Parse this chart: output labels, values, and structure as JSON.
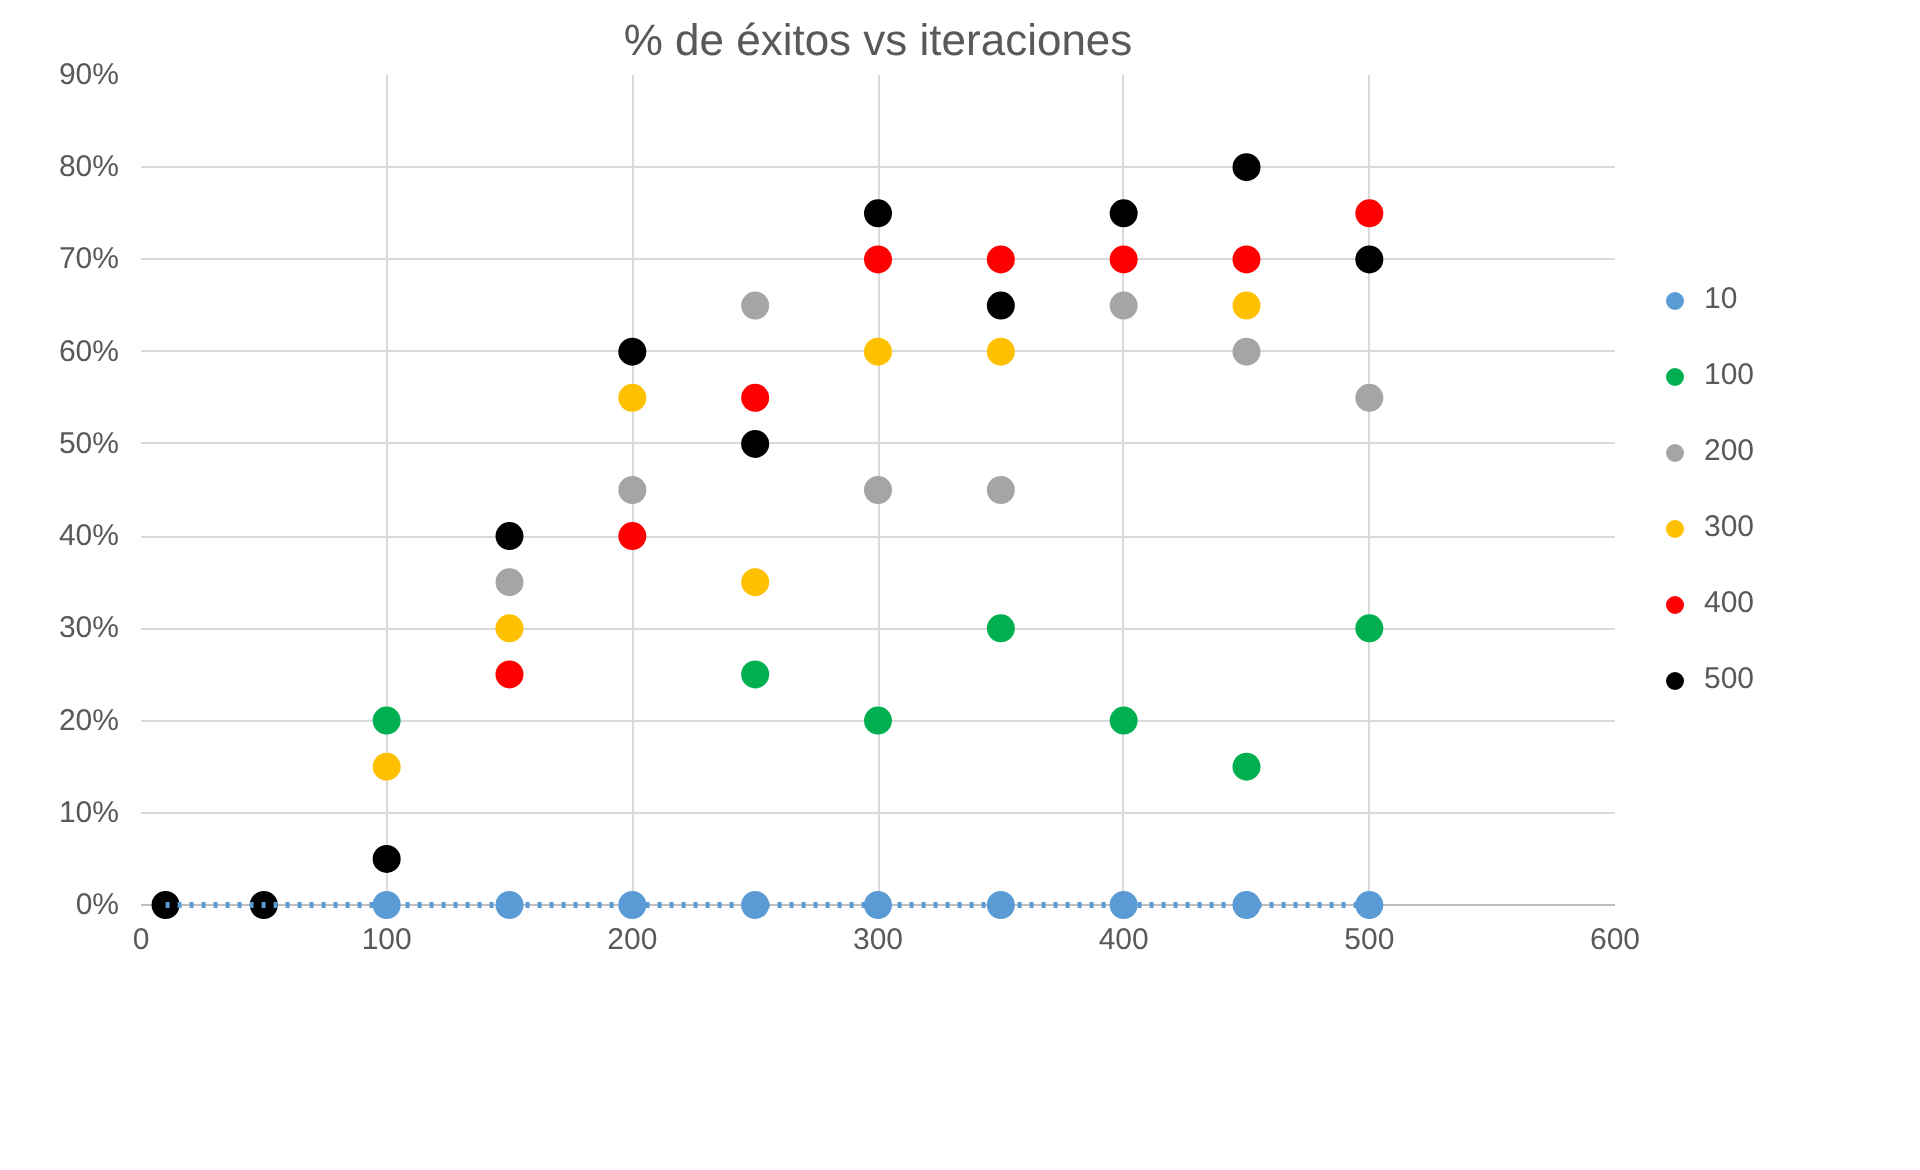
{
  "chart_data": {
    "type": "scatter",
    "title": "% de éxitos vs iteraciones",
    "x": [
      10,
      50,
      100,
      150,
      200,
      250,
      300,
      350,
      400,
      450,
      500
    ],
    "series": [
      {
        "name": "10",
        "color": "#5b9bd5",
        "values": [
          null,
          null,
          0,
          0,
          0,
          0,
          0,
          0,
          0,
          0,
          0
        ]
      },
      {
        "name": "100",
        "color": "#00b050",
        "values": [
          null,
          null,
          20,
          null,
          null,
          25,
          20,
          30,
          20,
          15,
          30
        ]
      },
      {
        "name": "200",
        "color": "#a5a5a5",
        "values": [
          null,
          null,
          null,
          35,
          45,
          65,
          45,
          45,
          65,
          60,
          55
        ]
      },
      {
        "name": "300",
        "color": "#ffc000",
        "values": [
          null,
          null,
          15,
          30,
          55,
          35,
          60,
          60,
          null,
          65,
          null
        ]
      },
      {
        "name": "400",
        "color": "#ff0000",
        "values": [
          null,
          null,
          null,
          25,
          40,
          55,
          70,
          70,
          70,
          70,
          75
        ]
      },
      {
        "name": "500",
        "color": "#000000",
        "values": [
          0,
          0,
          5,
          40,
          60,
          50,
          75,
          65,
          75,
          80,
          70
        ]
      },
      {
        "type": "line",
        "color": "#5b9bd5",
        "line_style": "dotted",
        "marker": "none",
        "x": [
          10,
          500
        ],
        "values": [
          0,
          0
        ]
      }
    ],
    "marker": "circle",
    "xlim": [
      0,
      600
    ],
    "xticks": [
      0,
      100,
      200,
      300,
      400,
      500,
      600
    ],
    "ylim": [
      0,
      90
    ],
    "yticks": [
      {
        "value": 0,
        "label": "0%"
      },
      {
        "value": 10,
        "label": "10%"
      },
      {
        "value": 20,
        "label": "20%"
      },
      {
        "value": 30,
        "label": "30%"
      },
      {
        "value": 40,
        "label": "40%"
      },
      {
        "value": 50,
        "label": "50%"
      },
      {
        "value": 60,
        "label": "60%"
      },
      {
        "value": 70,
        "label": "70%"
      },
      {
        "value": 80,
        "label": "80%"
      },
      {
        "value": 90,
        "label": "90%"
      }
    ],
    "grid": true,
    "legend": "right"
  }
}
